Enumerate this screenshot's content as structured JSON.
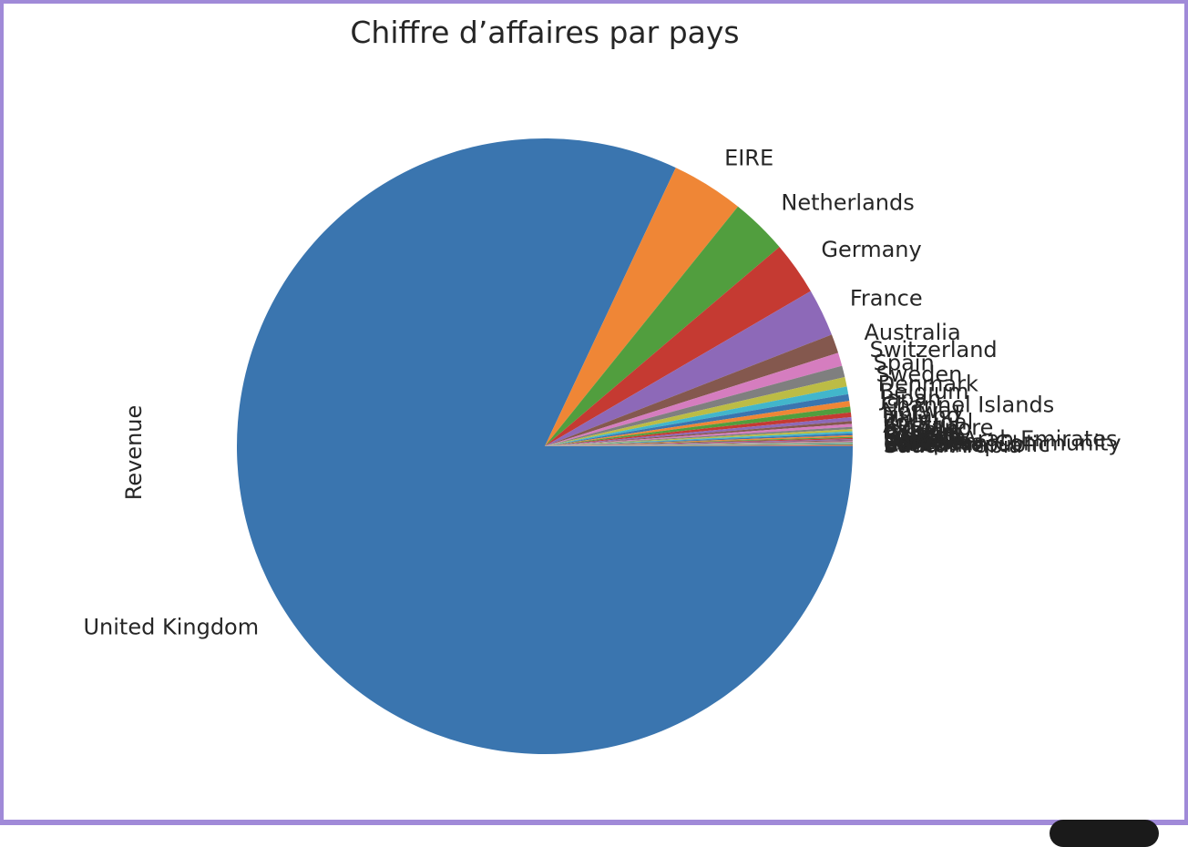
{
  "chart_data": {
    "type": "pie",
    "title": "Chiffre d’affaires par pays",
    "ylabel": "Revenue",
    "start_angle_deg": 0,
    "direction": "clockwise",
    "colors": [
      "#3a75af",
      "#ef8636",
      "#519e3e",
      "#c53a32",
      "#8d69b8",
      "#84584e",
      "#d57dbf",
      "#7f7f7f",
      "#bcbc45",
      "#42b6cb"
    ],
    "slices": [
      {
        "label": "United Kingdom",
        "value": 82.0
      },
      {
        "label": "EIRE",
        "value": 3.8
      },
      {
        "label": "Netherlands",
        "value": 3.0
      },
      {
        "label": "Germany",
        "value": 2.8
      },
      {
        "label": "France",
        "value": 2.5
      },
      {
        "label": "Australia",
        "value": 1.0
      },
      {
        "label": "Switzerland",
        "value": 0.7
      },
      {
        "label": "Spain",
        "value": 0.6
      },
      {
        "label": "Sweden",
        "value": 0.5
      },
      {
        "label": "Denmark",
        "value": 0.4
      },
      {
        "label": "Belgium",
        "value": 0.35
      },
      {
        "label": "Japan",
        "value": 0.3
      },
      {
        "label": "Channel Islands",
        "value": 0.3
      },
      {
        "label": "Norway",
        "value": 0.25
      },
      {
        "label": "Finland",
        "value": 0.2
      },
      {
        "label": "Italy",
        "value": 0.15
      },
      {
        "label": "Portugal",
        "value": 0.15
      },
      {
        "label": "Austria",
        "value": 0.12
      },
      {
        "label": "Singapore",
        "value": 0.12
      },
      {
        "label": "Israel",
        "value": 0.1
      },
      {
        "label": "Cyprus",
        "value": 0.1
      },
      {
        "label": "Poland",
        "value": 0.08
      },
      {
        "label": "Greece",
        "value": 0.06
      },
      {
        "label": "Iceland",
        "value": 0.06
      },
      {
        "label": "Canada",
        "value": 0.05
      },
      {
        "label": "United Arab Emirates",
        "value": 0.05
      },
      {
        "label": "Malta",
        "value": 0.04
      },
      {
        "label": "USA",
        "value": 0.04
      },
      {
        "label": "Lebanon",
        "value": 0.03
      },
      {
        "label": "Lithuania",
        "value": 0.03
      },
      {
        "label": "European Community",
        "value": 0.03
      },
      {
        "label": "Brazil",
        "value": 0.03
      },
      {
        "label": "RSA",
        "value": 0.02
      },
      {
        "label": "Czech Republic",
        "value": 0.02
      },
      {
        "label": "Bahrain",
        "value": 0.02
      },
      {
        "label": "Saudi Arabia",
        "value": 0.01
      }
    ]
  }
}
